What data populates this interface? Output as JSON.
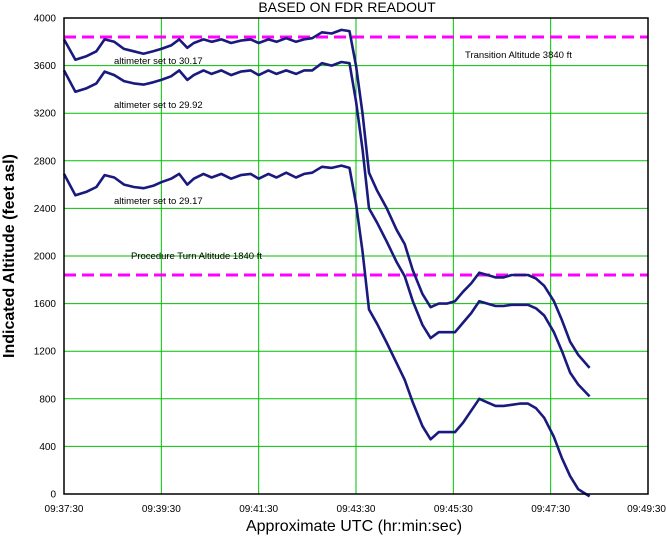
{
  "chart_data": {
    "type": "line",
    "title": "BASED ON FDR READOUT",
    "xlabel": "Approximate UTC (hr:min:sec)",
    "ylabel": "Indicated Altitude (feet asl)",
    "x_ticks": [
      "09:37:30",
      "09:39:30",
      "09:41:30",
      "09:43:30",
      "09:45:30",
      "09:47:30",
      "09:49:30"
    ],
    "x_range_seconds": [
      0,
      720
    ],
    "ylim": [
      0,
      4000
    ],
    "y_ticks": [
      0,
      400,
      800,
      1200,
      1600,
      2000,
      2400,
      2800,
      3200,
      3600,
      4000
    ],
    "grid": true,
    "colors": {
      "series": "#1a1a7e",
      "reference": "#ff00ff",
      "grid": "#00c000",
      "axis": "#000000"
    },
    "reference_lines": [
      {
        "label": "Transition Altitude 3840 ft",
        "value": 3840
      },
      {
        "label": "Procedure Turn Altitude 1840 ft",
        "value": 1840
      }
    ],
    "series": [
      {
        "name": "altimeter set to 30.17",
        "points": [
          [
            0,
            3820
          ],
          [
            14,
            3650
          ],
          [
            28,
            3680
          ],
          [
            40,
            3720
          ],
          [
            50,
            3820
          ],
          [
            62,
            3800
          ],
          [
            74,
            3740
          ],
          [
            86,
            3720
          ],
          [
            98,
            3700
          ],
          [
            110,
            3720
          ],
          [
            120,
            3740
          ],
          [
            132,
            3770
          ],
          [
            142,
            3820
          ],
          [
            152,
            3750
          ],
          [
            160,
            3790
          ],
          [
            172,
            3820
          ],
          [
            182,
            3800
          ],
          [
            194,
            3820
          ],
          [
            206,
            3790
          ],
          [
            218,
            3810
          ],
          [
            230,
            3820
          ],
          [
            240,
            3790
          ],
          [
            252,
            3820
          ],
          [
            262,
            3800
          ],
          [
            274,
            3830
          ],
          [
            286,
            3800
          ],
          [
            296,
            3820
          ],
          [
            306,
            3830
          ],
          [
            318,
            3880
          ],
          [
            330,
            3870
          ],
          [
            342,
            3900
          ],
          [
            352,
            3890
          ],
          [
            360,
            3600
          ],
          [
            368,
            3200
          ],
          [
            376,
            2700
          ],
          [
            386,
            2550
          ],
          [
            398,
            2400
          ],
          [
            410,
            2220
          ],
          [
            420,
            2100
          ],
          [
            430,
            1880
          ],
          [
            442,
            1680
          ],
          [
            452,
            1570
          ],
          [
            462,
            1600
          ],
          [
            472,
            1600
          ],
          [
            482,
            1620
          ],
          [
            492,
            1700
          ],
          [
            502,
            1770
          ],
          [
            512,
            1860
          ],
          [
            522,
            1840
          ],
          [
            532,
            1820
          ],
          [
            542,
            1820
          ],
          [
            552,
            1840
          ],
          [
            562,
            1840
          ],
          [
            572,
            1840
          ],
          [
            582,
            1810
          ],
          [
            592,
            1750
          ],
          [
            604,
            1620
          ],
          [
            614,
            1460
          ],
          [
            624,
            1280
          ],
          [
            634,
            1170
          ],
          [
            648,
            1060
          ]
        ]
      },
      {
        "name": "altimeter set to 29.92",
        "points": [
          [
            0,
            3560
          ],
          [
            14,
            3380
          ],
          [
            28,
            3410
          ],
          [
            40,
            3450
          ],
          [
            50,
            3550
          ],
          [
            62,
            3520
          ],
          [
            74,
            3470
          ],
          [
            86,
            3450
          ],
          [
            98,
            3440
          ],
          [
            110,
            3460
          ],
          [
            120,
            3480
          ],
          [
            132,
            3510
          ],
          [
            142,
            3560
          ],
          [
            152,
            3480
          ],
          [
            160,
            3520
          ],
          [
            172,
            3560
          ],
          [
            182,
            3530
          ],
          [
            194,
            3560
          ],
          [
            206,
            3520
          ],
          [
            218,
            3550
          ],
          [
            230,
            3560
          ],
          [
            240,
            3520
          ],
          [
            252,
            3560
          ],
          [
            262,
            3530
          ],
          [
            274,
            3560
          ],
          [
            286,
            3530
          ],
          [
            296,
            3560
          ],
          [
            306,
            3560
          ],
          [
            318,
            3620
          ],
          [
            330,
            3600
          ],
          [
            342,
            3630
          ],
          [
            352,
            3620
          ],
          [
            360,
            3300
          ],
          [
            368,
            2900
          ],
          [
            376,
            2400
          ],
          [
            386,
            2280
          ],
          [
            398,
            2120
          ],
          [
            410,
            1950
          ],
          [
            420,
            1830
          ],
          [
            430,
            1620
          ],
          [
            442,
            1420
          ],
          [
            452,
            1310
          ],
          [
            462,
            1360
          ],
          [
            472,
            1360
          ],
          [
            482,
            1360
          ],
          [
            492,
            1440
          ],
          [
            502,
            1520
          ],
          [
            512,
            1620
          ],
          [
            522,
            1600
          ],
          [
            532,
            1580
          ],
          [
            542,
            1580
          ],
          [
            552,
            1590
          ],
          [
            562,
            1590
          ],
          [
            572,
            1590
          ],
          [
            582,
            1560
          ],
          [
            592,
            1500
          ],
          [
            604,
            1360
          ],
          [
            614,
            1200
          ],
          [
            624,
            1020
          ],
          [
            634,
            920
          ],
          [
            648,
            820
          ]
        ]
      },
      {
        "name": "altimeter set to 29.17",
        "points": [
          [
            0,
            2690
          ],
          [
            14,
            2510
          ],
          [
            28,
            2540
          ],
          [
            40,
            2580
          ],
          [
            50,
            2680
          ],
          [
            62,
            2660
          ],
          [
            74,
            2600
          ],
          [
            86,
            2580
          ],
          [
            98,
            2570
          ],
          [
            110,
            2590
          ],
          [
            120,
            2620
          ],
          [
            132,
            2650
          ],
          [
            142,
            2690
          ],
          [
            152,
            2600
          ],
          [
            160,
            2650
          ],
          [
            172,
            2690
          ],
          [
            182,
            2660
          ],
          [
            194,
            2690
          ],
          [
            206,
            2650
          ],
          [
            218,
            2680
          ],
          [
            230,
            2690
          ],
          [
            240,
            2650
          ],
          [
            252,
            2690
          ],
          [
            262,
            2660
          ],
          [
            274,
            2700
          ],
          [
            286,
            2660
          ],
          [
            296,
            2690
          ],
          [
            306,
            2700
          ],
          [
            318,
            2750
          ],
          [
            330,
            2740
          ],
          [
            342,
            2760
          ],
          [
            352,
            2740
          ],
          [
            360,
            2440
          ],
          [
            368,
            2040
          ],
          [
            376,
            1550
          ],
          [
            386,
            1430
          ],
          [
            398,
            1270
          ],
          [
            410,
            1100
          ],
          [
            420,
            960
          ],
          [
            430,
            770
          ],
          [
            442,
            570
          ],
          [
            452,
            460
          ],
          [
            462,
            520
          ],
          [
            472,
            520
          ],
          [
            482,
            520
          ],
          [
            492,
            600
          ],
          [
            502,
            700
          ],
          [
            512,
            800
          ],
          [
            522,
            770
          ],
          [
            532,
            740
          ],
          [
            542,
            740
          ],
          [
            552,
            750
          ],
          [
            562,
            760
          ],
          [
            572,
            760
          ],
          [
            582,
            720
          ],
          [
            592,
            640
          ],
          [
            604,
            480
          ],
          [
            614,
            300
          ],
          [
            624,
            150
          ],
          [
            634,
            40
          ],
          [
            648,
            -20
          ]
        ]
      }
    ]
  }
}
